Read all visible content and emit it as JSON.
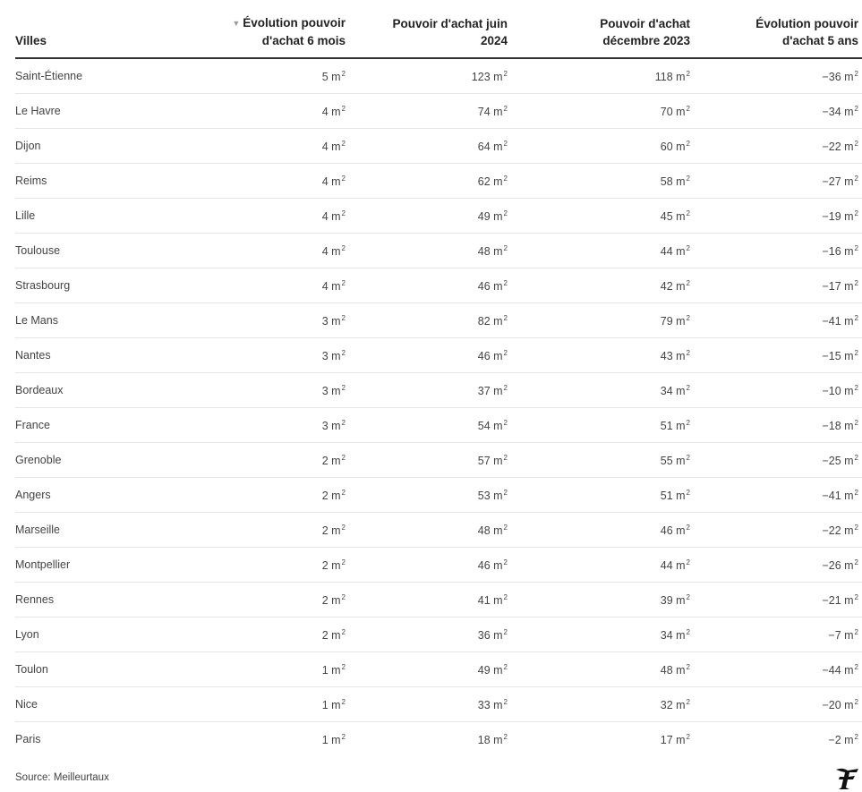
{
  "chart_data": {
    "type": "table",
    "columns": [
      "Villes",
      "Évolution pouvoir d'achat 6 mois",
      "Pouvoir d'achat juin 2024",
      "Pouvoir d'achat décembre 2023",
      "Évolution pouvoir d'achat 5 ans"
    ],
    "sorted_column": 1,
    "sort_direction": "descending",
    "unit": "m",
    "unit_exponent": "2",
    "rows": [
      [
        "Saint-Étienne",
        5,
        123,
        118,
        -36
      ],
      [
        "Le Havre",
        4,
        74,
        70,
        -34
      ],
      [
        "Dijon",
        4,
        64,
        60,
        -22
      ],
      [
        "Reims",
        4,
        62,
        58,
        -27
      ],
      [
        "Lille",
        4,
        49,
        45,
        -19
      ],
      [
        "Toulouse",
        4,
        48,
        44,
        -16
      ],
      [
        "Strasbourg",
        4,
        46,
        42,
        -17
      ],
      [
        "Le Mans",
        3,
        82,
        79,
        -41
      ],
      [
        "Nantes",
        3,
        46,
        43,
        -15
      ],
      [
        "Bordeaux",
        3,
        37,
        34,
        -10
      ],
      [
        "France",
        3,
        54,
        51,
        -18
      ],
      [
        "Grenoble",
        2,
        57,
        55,
        -25
      ],
      [
        "Angers",
        2,
        53,
        51,
        -41
      ],
      [
        "Marseille",
        2,
        48,
        46,
        -22
      ],
      [
        "Montpellier",
        2,
        46,
        44,
        -26
      ],
      [
        "Rennes",
        2,
        41,
        39,
        -21
      ],
      [
        "Lyon",
        2,
        36,
        34,
        -7
      ],
      [
        "Toulon",
        1,
        49,
        48,
        -44
      ],
      [
        "Nice",
        1,
        33,
        32,
        -20
      ],
      [
        "Paris",
        1,
        18,
        17,
        -2
      ]
    ]
  },
  "header": {
    "col0": "Villes",
    "col1_line1": "Évolution pouvoir",
    "col1_line2": "d'achat 6 mois",
    "col2_line1": "Pouvoir d'achat juin",
    "col2_line2": "2024",
    "col3_line1": "Pouvoir d'achat",
    "col3_line2": "décembre 2023",
    "col4_line1": "Évolution pouvoir",
    "col4_line2": "d'achat 5 ans",
    "sort_icon": "triangle-down-icon"
  },
  "footer": {
    "source": "Source: Meilleurtaux",
    "logo_icon": "le-figaro-logo"
  },
  "colors": {
    "text": "#333333",
    "header_rule": "#333333",
    "row_rule": "#e6e6e6",
    "sort_arrow": "#9a9a9a"
  }
}
